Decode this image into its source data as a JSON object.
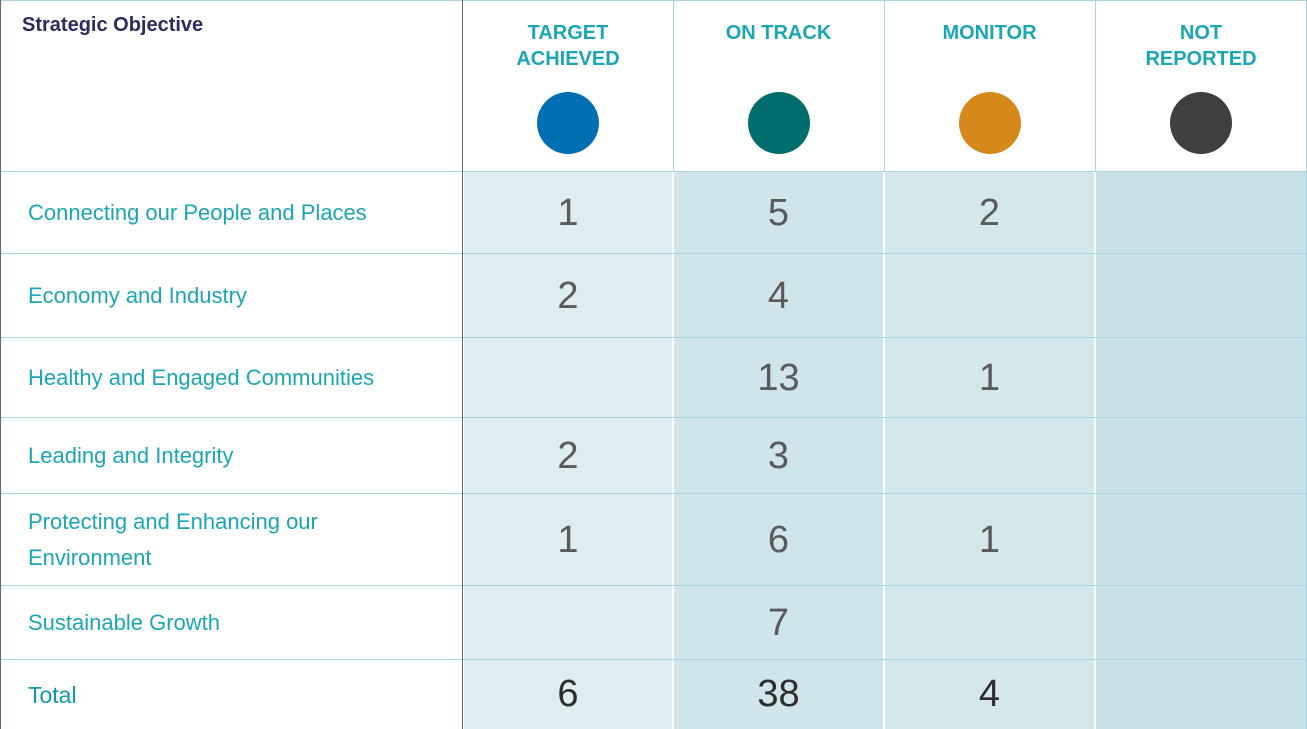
{
  "table": {
    "header": {
      "first": "Strategic Objective",
      "statuses": [
        {
          "label": "TARGET\nACHIEVED",
          "color": "#0170b3"
        },
        {
          "label": "ON TRACK",
          "color": "#016e6d"
        },
        {
          "label": "MONITOR",
          "color": "#d4891a"
        },
        {
          "label": "NOT\nREPORTED",
          "color": "#3f3f41"
        }
      ]
    },
    "rows": [
      [
        "Connecting our People and Places",
        1,
        5,
        2,
        null
      ],
      [
        "Economy and Industry",
        2,
        4,
        null,
        null
      ],
      [
        "Healthy and Engaged Communities",
        null,
        13,
        1,
        null
      ],
      [
        "Leading and Integrity",
        2,
        3,
        null,
        null
      ],
      [
        "Protecting and Enhancing our Environment",
        1,
        6,
        1,
        null
      ],
      [
        "Sustainable Growth",
        null,
        7,
        null,
        null
      ]
    ],
    "total": [
      "Total",
      6,
      38,
      4,
      null
    ]
  }
}
